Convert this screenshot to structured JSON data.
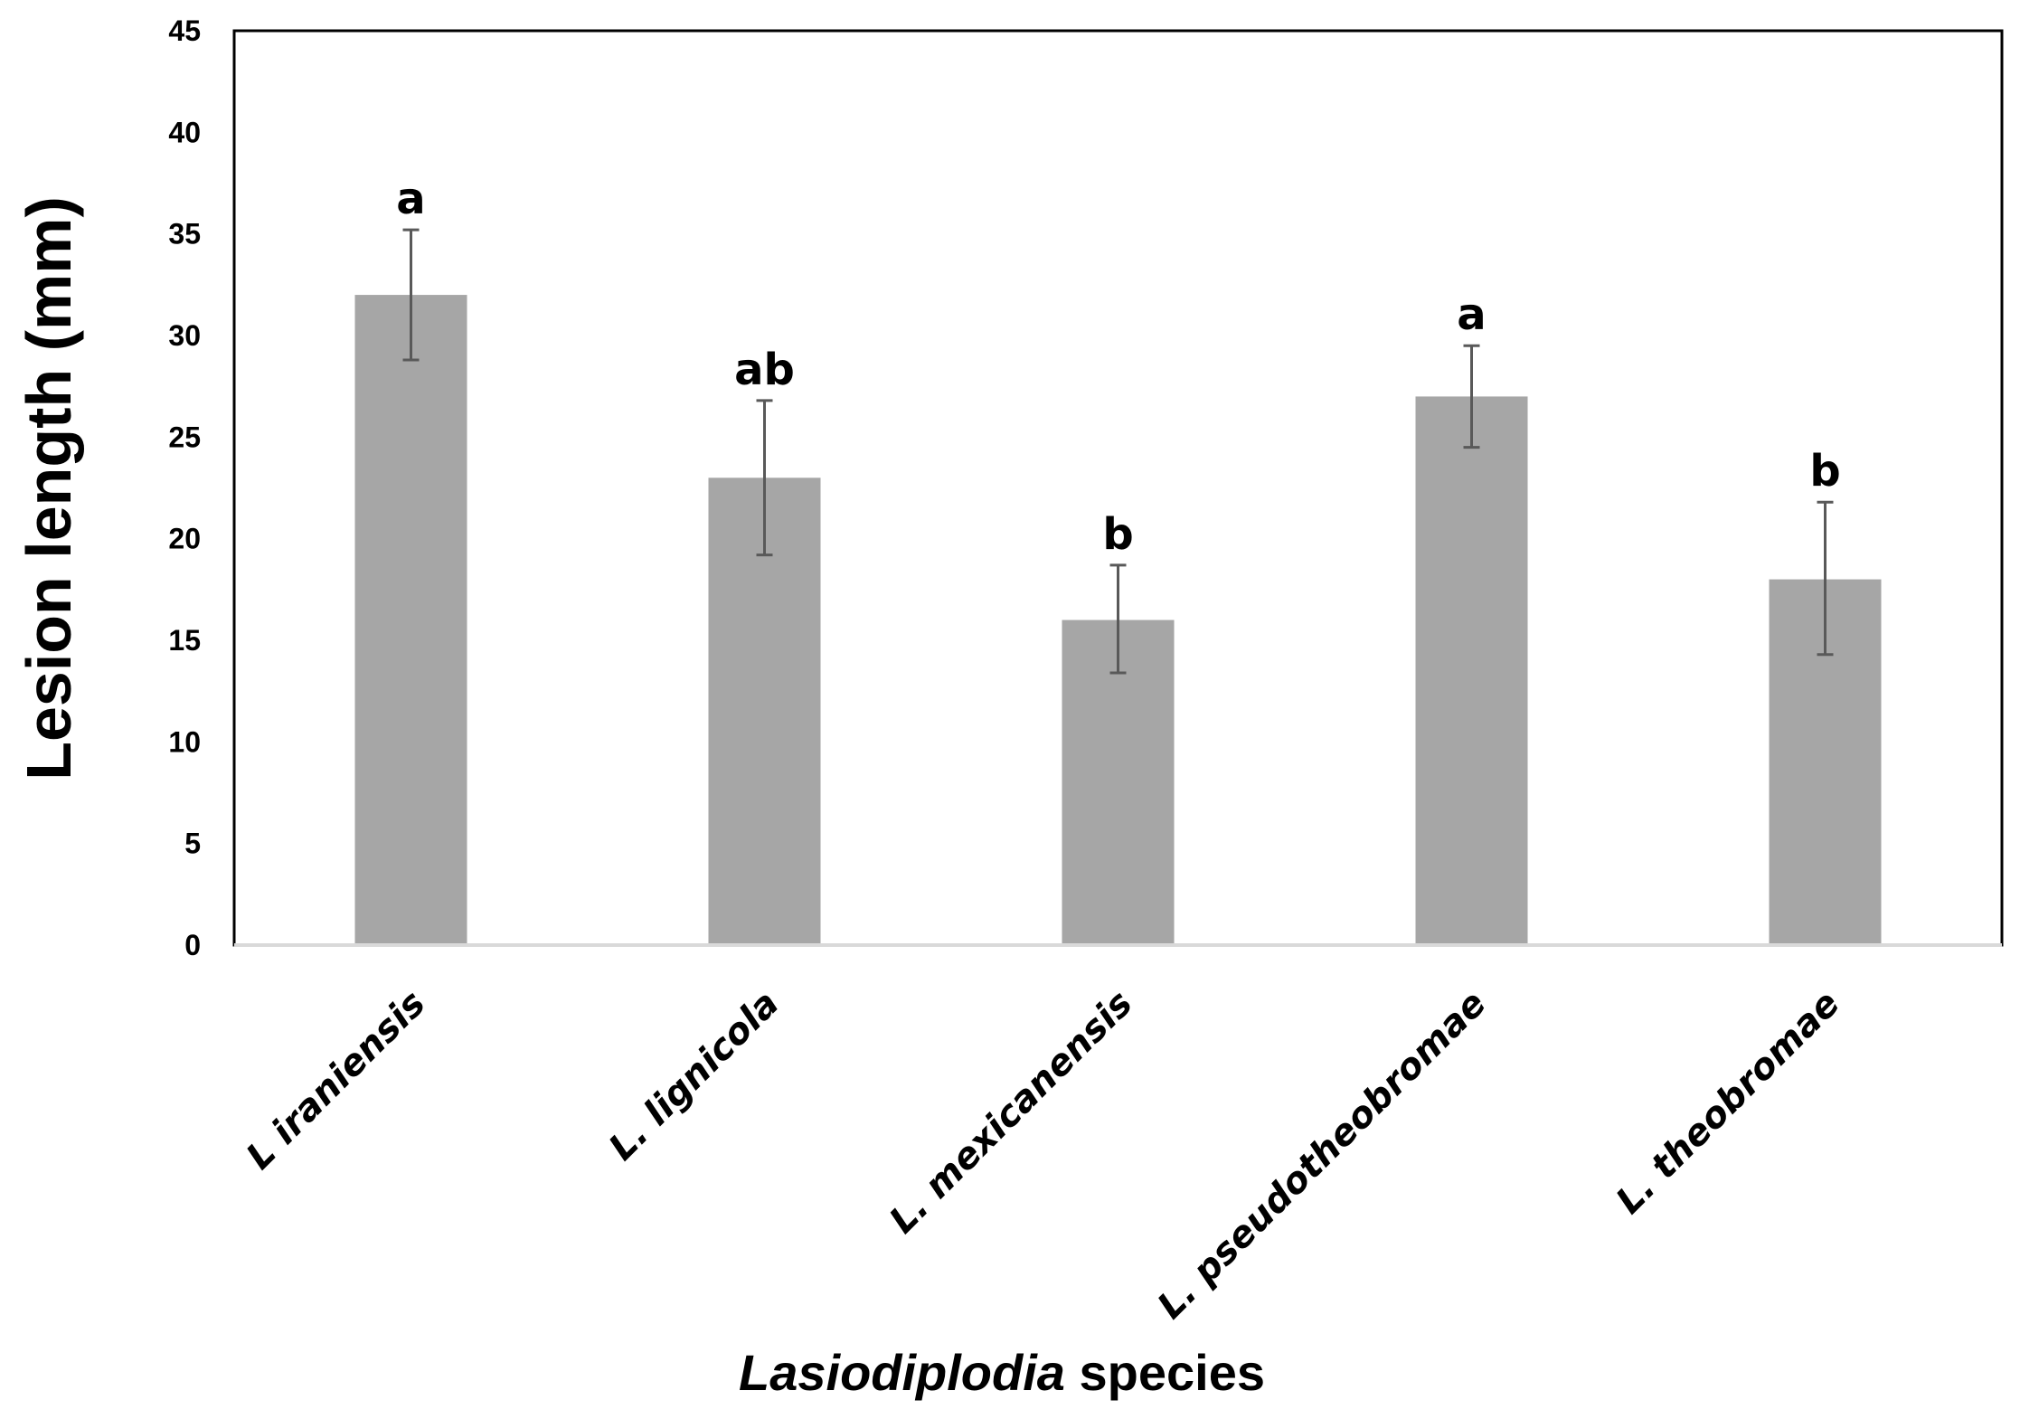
{
  "chart_data": {
    "type": "bar",
    "categories": [
      "L iraniensis",
      "L. lignicola",
      "L. mexicanensis",
      "L. pseudotheobromae",
      "L. theobromae"
    ],
    "values": [
      32,
      23,
      16,
      27,
      18
    ],
    "error_low": [
      28.8,
      19.2,
      13.4,
      24.5,
      14.3
    ],
    "error_high": [
      35.2,
      26.8,
      18.7,
      29.5,
      21.8
    ],
    "significance_letters": [
      "a",
      "ab",
      "b",
      "a",
      "b"
    ],
    "xlabel_italic": "Lasiodiplodia",
    "xlabel_rest": " species",
    "ylabel": "Lesion length (mm)",
    "ylim": [
      0,
      45
    ],
    "yticks": [
      0,
      5,
      10,
      15,
      20,
      25,
      30,
      35,
      40,
      45
    ],
    "grid": false,
    "bar_color": "#a6a6a6",
    "error_bar_color": "#595959"
  }
}
